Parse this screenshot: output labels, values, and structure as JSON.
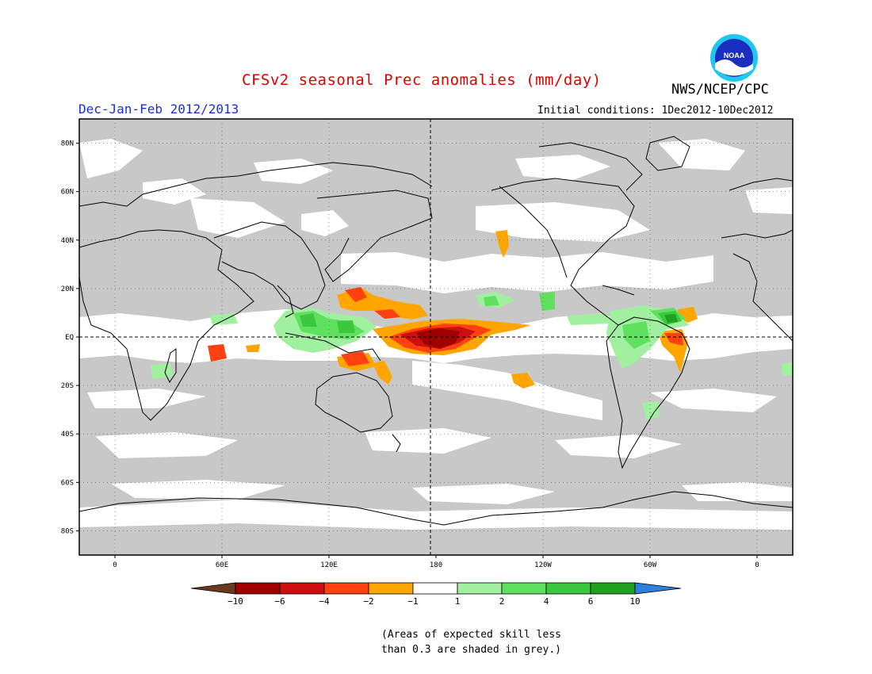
{
  "header": {
    "title": "CFSv2 seasonal Prec anomalies (mm/day)",
    "org": "NWS/NCEP/CPC",
    "season": "Dec-Jan-Feb 2012/2013",
    "initial_conditions": "Initial conditions: 1Dec2012-10Dec2012",
    "logo_text": "NOAA"
  },
  "map": {
    "projection": "cylindrical-equidistant",
    "lon_range": [
      -20,
      380
    ],
    "lat_range": [
      -90,
      90
    ],
    "lat_labels": [
      {
        "lat": 80,
        "label": "80N"
      },
      {
        "lat": 60,
        "label": "60N"
      },
      {
        "lat": 40,
        "label": "40N"
      },
      {
        "lat": 20,
        "label": "20N"
      },
      {
        "lat": 0,
        "label": "EQ"
      },
      {
        "lat": -20,
        "label": "20S"
      },
      {
        "lat": -40,
        "label": "40S"
      },
      {
        "lat": -60,
        "label": "60S"
      },
      {
        "lat": -80,
        "label": "80S"
      }
    ],
    "lon_labels": [
      {
        "lon": 0,
        "label": "0"
      },
      {
        "lon": 60,
        "label": "60E"
      },
      {
        "lon": 120,
        "label": "120E"
      },
      {
        "lon": 180,
        "label": "180"
      },
      {
        "lon": 240,
        "label": "120W"
      },
      {
        "lon": 300,
        "label": "60W"
      },
      {
        "lon": 360,
        "label": "0"
      }
    ],
    "colors": {
      "skill_grey": "#c8c8c8",
      "neg_10": "#6b3a1e",
      "neg_6": "#a00000",
      "neg_4": "#cc1010",
      "neg_2": "#ff4010",
      "neg_1": "#ffa500",
      "neutral": "#ffffff",
      "pos_1": "#a0f0a0",
      "pos_2": "#5fe05f",
      "pos_4": "#3cc83c",
      "pos_6": "#20a020",
      "pos_10": "#2f7fe0"
    }
  },
  "colorbar": {
    "labels": [
      "-10",
      "-6",
      "-4",
      "-2",
      "-1",
      "1",
      "2",
      "4",
      "6",
      "10"
    ],
    "colors": [
      "#6b3a1e",
      "#a00000",
      "#cc1010",
      "#ff4010",
      "#ffa500",
      "#ffffff",
      "#a0f0a0",
      "#5fe05f",
      "#3cc83c",
      "#20a020",
      "#2f7fe0"
    ]
  },
  "footnote": {
    "line1": "(Areas of expected skill less",
    "line2": "than 0.3 are shaded in grey.)"
  }
}
